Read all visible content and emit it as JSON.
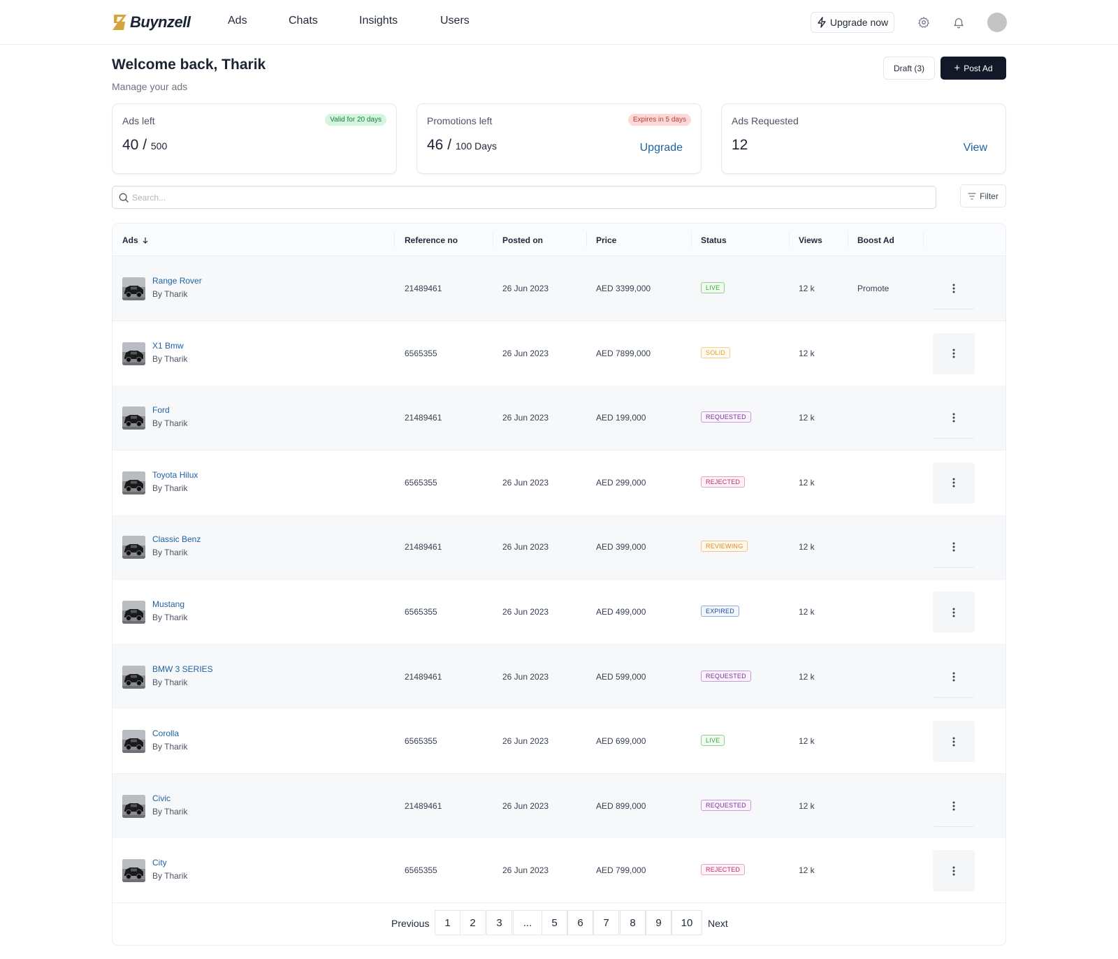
{
  "brand": {
    "name": "Buynzell"
  },
  "nav": {
    "items": [
      {
        "label": "Ads"
      },
      {
        "label": "Chats"
      },
      {
        "label": "Insights"
      },
      {
        "label": "Users"
      }
    ]
  },
  "header": {
    "upgrade_label": "Upgrade now",
    "settings_icon": "gear-icon",
    "notifications_icon": "bell-icon"
  },
  "page": {
    "title": "Welcome back, Tharik",
    "subtitle": "Manage your ads",
    "draft_label": "Draft (3)",
    "post_label": "Post Ad"
  },
  "cards": {
    "ads_left": {
      "label": "Ads left",
      "badge": "Valid for 20 days",
      "value": "40",
      "sep": "/",
      "total": "500"
    },
    "promotions_left": {
      "label": "Promotions left",
      "badge": "Expires in 5 days",
      "value": "46",
      "sep": "/",
      "total": "100 Days",
      "link": "Upgrade"
    },
    "ads_requested": {
      "label": "Ads Requested",
      "value": "12",
      "link": "View"
    }
  },
  "search": {
    "placeholder": "Search...",
    "value": ""
  },
  "filter": {
    "label": "Filter"
  },
  "table": {
    "columns": {
      "ads": "Ads",
      "reference": "Reference no",
      "posted": "Posted on",
      "price": "Price",
      "status": "Status",
      "views": "Views",
      "boost": "Boost Ad"
    },
    "rows": [
      {
        "name": "Range Rover",
        "by": "By Tharik",
        "ref": "21489461",
        "posted": "26 Jun 2023",
        "price": "AED 3399,000",
        "status": "LIVE",
        "views": "12 k",
        "boost": "Promote"
      },
      {
        "name": "X1 Bmw",
        "by": "By Tharik",
        "ref": "6565355",
        "posted": "26 Jun 2023",
        "price": "AED 7899,000",
        "status": "SOLID",
        "views": "12 k",
        "boost": ""
      },
      {
        "name": "Ford",
        "by": "By Tharik",
        "ref": "21489461",
        "posted": "26 Jun 2023",
        "price": "AED 199,000",
        "status": "REQUESTED",
        "views": "12 k",
        "boost": ""
      },
      {
        "name": "Toyota Hilux",
        "by": "By Tharik",
        "ref": "6565355",
        "posted": "26 Jun 2023",
        "price": "AED 299,000",
        "status": "REJECTED",
        "views": "12 k",
        "boost": ""
      },
      {
        "name": "Classic Benz",
        "by": "By Tharik",
        "ref": "21489461",
        "posted": "26 Jun 2023",
        "price": "AED 399,000",
        "status": "REVIEWING",
        "views": "12 k",
        "boost": ""
      },
      {
        "name": "Mustang",
        "by": "By Tharik",
        "ref": "6565355",
        "posted": "26 Jun 2023",
        "price": "AED 499,000",
        "status": "EXPIRED",
        "views": "12 k",
        "boost": ""
      },
      {
        "name": "BMW 3 SERIES",
        "by": "By Tharik",
        "ref": "21489461",
        "posted": "26 Jun 2023",
        "price": "AED 599,000",
        "status": "REQUESTED",
        "views": "12 k",
        "boost": ""
      },
      {
        "name": "Corolla",
        "by": "By Tharik",
        "ref": "6565355",
        "posted": "26 Jun 2023",
        "price": "AED 699,000",
        "status": "LIVE",
        "views": "12 k",
        "boost": ""
      },
      {
        "name": "Civic",
        "by": "By Tharik",
        "ref": "21489461",
        "posted": "26 Jun 2023",
        "price": "AED 899,000",
        "status": "REQUESTED",
        "views": "12 k",
        "boost": ""
      },
      {
        "name": "City",
        "by": "By Tharik",
        "ref": "6565355",
        "posted": "26 Jun 2023",
        "price": "AED 799,000",
        "status": "REJECTED",
        "views": "12 k",
        "boost": ""
      }
    ]
  },
  "status_colors": {
    "LIVE": {
      "text": "#3aa637",
      "border": "#8fd18c",
      "bg": "#f2fbf1"
    },
    "SOLID": {
      "text": "#e3a02c",
      "border": "#f3d08c",
      "bg": "#fffaf0"
    },
    "REQUESTED": {
      "text": "#7a2f9b",
      "border": "#c99ad9",
      "bg": "#faf3fc"
    },
    "REJECTED": {
      "text": "#c2286a",
      "border": "#eea0c2",
      "bg": "#fdf2f7"
    },
    "REVIEWING": {
      "text": "#dc8a1a",
      "border": "#f2c785",
      "bg": "#fff8ef"
    },
    "EXPIRED": {
      "text": "#1f4aa0",
      "border": "#8fa9dd",
      "bg": "#f2f6fd"
    }
  },
  "pagination": {
    "previous": "Previous",
    "next": "Next",
    "pages": [
      "1",
      "2",
      "3",
      "...",
      "5",
      "6",
      "7",
      "8",
      "9",
      "10"
    ]
  }
}
